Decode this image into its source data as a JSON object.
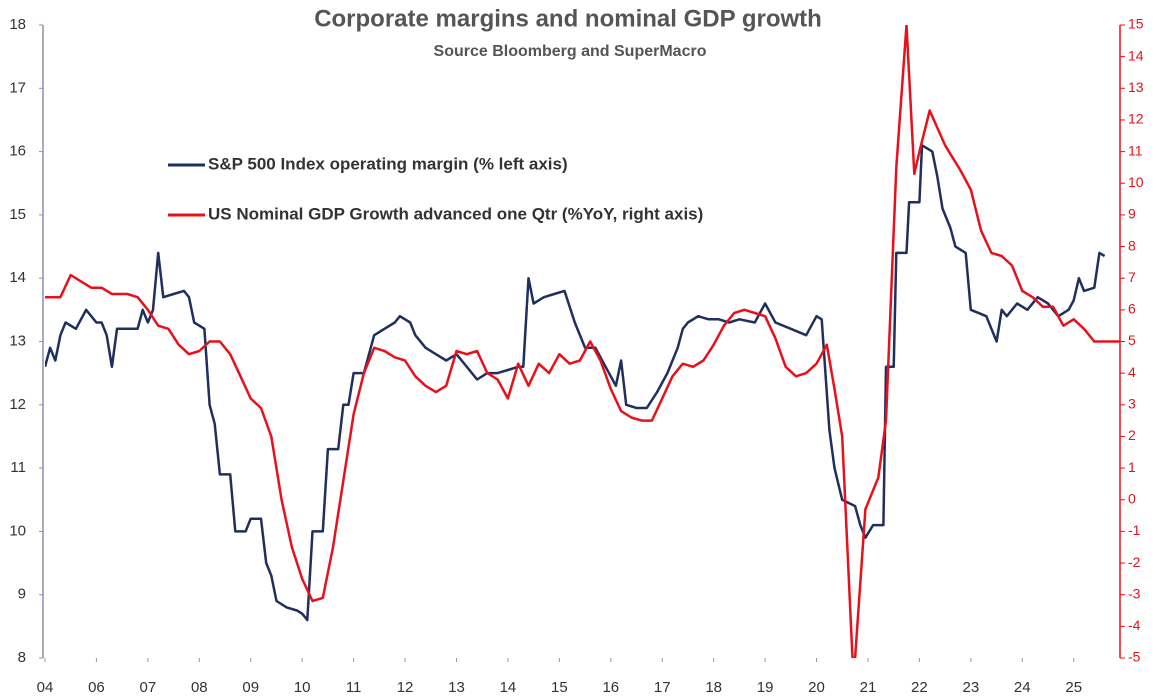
{
  "chart_data": {
    "type": "line",
    "title": "Corporate margins and nominal GDP growth",
    "subtitle": "Source Bloomberg and SuperMacro",
    "xlim": [
      0,
      20.9
    ],
    "xticks": [
      {
        "value": 0,
        "label": "04"
      },
      {
        "value": 1,
        "label": "06"
      },
      {
        "value": 2,
        "label": "07"
      },
      {
        "value": 3,
        "label": "08"
      },
      {
        "value": 4,
        "label": "09"
      },
      {
        "value": 5,
        "label": "10"
      },
      {
        "value": 6,
        "label": "11"
      },
      {
        "value": 7,
        "label": "12"
      },
      {
        "value": 8,
        "label": "13"
      },
      {
        "value": 9,
        "label": "14"
      },
      {
        "value": 10,
        "label": "15"
      },
      {
        "value": 11,
        "label": "16"
      },
      {
        "value": 12,
        "label": "17"
      },
      {
        "value": 13,
        "label": "18"
      },
      {
        "value": 14,
        "label": "19"
      },
      {
        "value": 15,
        "label": "20"
      },
      {
        "value": 16,
        "label": "21"
      },
      {
        "value": 17,
        "label": "22"
      },
      {
        "value": 18,
        "label": "23"
      },
      {
        "value": 19,
        "label": "24"
      },
      {
        "value": 20,
        "label": "25"
      }
    ],
    "ylim": [
      8,
      18
    ],
    "yticks": [
      8,
      9,
      10,
      11,
      12,
      13,
      14,
      15,
      16,
      17,
      18
    ],
    "y2lim": [
      -5,
      15
    ],
    "y2ticks": [
      -5,
      -4,
      -3,
      -2,
      -1,
      0,
      1,
      2,
      3,
      4,
      5,
      6,
      7,
      8,
      9,
      10,
      11,
      12,
      13,
      14,
      15
    ],
    "series": [
      {
        "name": "S&P 500 Index operating margin (% left axis)",
        "color": "#1f2f5e",
        "axis": "y",
        "x": [
          0,
          0.1,
          0.2,
          0.3,
          0.4,
          0.6,
          0.8,
          1.0,
          1.1,
          1.2,
          1.3,
          1.4,
          1.6,
          1.8,
          1.9,
          2.0,
          2.1,
          2.2,
          2.3,
          2.5,
          2.7,
          2.8,
          2.9,
          3.1,
          3.2,
          3.3,
          3.4,
          3.6,
          3.7,
          3.9,
          4.0,
          4.2,
          4.3,
          4.4,
          4.5,
          4.7,
          4.9,
          5.0,
          5.1,
          5.2,
          5.4,
          5.5,
          5.7,
          5.8,
          5.9,
          6.0,
          6.2,
          6.3,
          6.4,
          6.6,
          6.8,
          6.9,
          7.1,
          7.2,
          7.4,
          7.6,
          7.8,
          8.0,
          8.2,
          8.4,
          8.6,
          8.8,
          9.0,
          9.2,
          9.3,
          9.4,
          9.5,
          9.7,
          9.9,
          10.1,
          10.3,
          10.5,
          10.7,
          10.9,
          11.1,
          11.2,
          11.3,
          11.5,
          11.7,
          11.9,
          12.1,
          12.3,
          12.4,
          12.5,
          12.7,
          12.9,
          13.1,
          13.3,
          13.5,
          13.8,
          14.0,
          14.2,
          14.5,
          14.8,
          15.0,
          15.1,
          15.25,
          15.35,
          15.5,
          15.75,
          15.85,
          15.95,
          16.1,
          16.3,
          16.35,
          16.5,
          16.55,
          16.75,
          16.8,
          17.0,
          17.05,
          17.25,
          17.35,
          17.45,
          17.6,
          17.7,
          17.9,
          18.0,
          18.3,
          18.5,
          18.6,
          18.7,
          18.9,
          19.1,
          19.3,
          19.5,
          19.7,
          19.9,
          20.0,
          20.1,
          20.2,
          20.4,
          20.5,
          20.6
        ],
        "values": [
          12.6,
          12.9,
          12.7,
          13.1,
          13.3,
          13.2,
          13.5,
          13.3,
          13.3,
          13.1,
          12.6,
          13.2,
          13.2,
          13.2,
          13.5,
          13.3,
          13.5,
          14.4,
          13.7,
          13.75,
          13.8,
          13.7,
          13.3,
          13.2,
          12.0,
          11.7,
          10.9,
          10.9,
          10.0,
          10.0,
          10.2,
          10.2,
          9.5,
          9.3,
          8.9,
          8.8,
          8.75,
          8.7,
          8.6,
          10.0,
          10.0,
          11.3,
          11.3,
          12.0,
          12.0,
          12.5,
          12.5,
          12.8,
          13.1,
          13.2,
          13.3,
          13.4,
          13.3,
          13.1,
          12.9,
          12.8,
          12.7,
          12.8,
          12.6,
          12.4,
          12.5,
          12.5,
          12.55,
          12.6,
          12.6,
          14.0,
          13.6,
          13.7,
          13.75,
          13.8,
          13.3,
          12.9,
          12.9,
          12.6,
          12.3,
          12.7,
          12.0,
          11.95,
          11.95,
          12.2,
          12.5,
          12.9,
          13.2,
          13.3,
          13.4,
          13.35,
          13.35,
          13.3,
          13.35,
          13.3,
          13.6,
          13.3,
          13.2,
          13.1,
          13.4,
          13.35,
          11.6,
          11.0,
          10.5,
          10.4,
          10.1,
          9.9,
          10.1,
          10.1,
          12.6,
          12.6,
          14.4,
          14.4,
          15.2,
          15.2,
          16.1,
          16.0,
          15.6,
          15.1,
          14.8,
          14.5,
          14.4,
          13.5,
          13.4,
          13.0,
          13.5,
          13.4,
          13.6,
          13.5,
          13.7,
          13.6,
          13.4,
          13.5,
          13.65,
          14.0,
          13.8,
          13.85,
          14.4,
          14.35
        ]
      },
      {
        "name": "US Nominal GDP Growth advanced one Qtr (%YoY, right axis)",
        "color": "#e8101a",
        "axis": "y2",
        "x": [
          0,
          0.3,
          0.5,
          0.7,
          0.9,
          1.1,
          1.3,
          1.6,
          1.8,
          2.0,
          2.2,
          2.4,
          2.6,
          2.8,
          3.0,
          3.2,
          3.4,
          3.6,
          3.8,
          4.0,
          4.2,
          4.4,
          4.6,
          4.8,
          5.0,
          5.2,
          5.4,
          5.6,
          5.8,
          6.0,
          6.2,
          6.4,
          6.6,
          6.8,
          7.0,
          7.2,
          7.4,
          7.6,
          7.8,
          8.0,
          8.2,
          8.4,
          8.6,
          8.8,
          9.0,
          9.2,
          9.4,
          9.6,
          9.8,
          10.0,
          10.2,
          10.4,
          10.6,
          10.8,
          11.0,
          11.2,
          11.4,
          11.6,
          11.8,
          12.0,
          12.2,
          12.4,
          12.6,
          12.8,
          13.0,
          13.2,
          13.4,
          13.6,
          13.8,
          14.0,
          14.2,
          14.4,
          14.6,
          14.8,
          15.0,
          15.2,
          15.35,
          15.5,
          15.7,
          15.75,
          15.95,
          16.2,
          16.35,
          16.55,
          16.75,
          16.9,
          17.0,
          17.2,
          17.5,
          17.8,
          18.0,
          18.2,
          18.4,
          18.6,
          18.8,
          19.0,
          19.2,
          19.4,
          19.6,
          19.8,
          20.0,
          20.2,
          20.4,
          20.6,
          20.9
        ],
        "values": [
          6.4,
          6.4,
          7.1,
          6.9,
          6.7,
          6.7,
          6.5,
          6.5,
          6.4,
          6.0,
          5.5,
          5.4,
          4.9,
          4.6,
          4.7,
          5.0,
          5.0,
          4.6,
          3.9,
          3.2,
          2.9,
          2.0,
          0.0,
          -1.5,
          -2.5,
          -3.2,
          -3.1,
          -1.5,
          0.6,
          2.7,
          4.0,
          4.8,
          4.7,
          4.5,
          4.4,
          3.9,
          3.6,
          3.4,
          3.6,
          4.7,
          4.6,
          4.7,
          4.0,
          3.8,
          3.2,
          4.3,
          3.6,
          4.3,
          4.0,
          4.6,
          4.3,
          4.4,
          5.0,
          4.4,
          3.5,
          2.8,
          2.6,
          2.5,
          2.5,
          3.2,
          3.9,
          4.3,
          4.2,
          4.4,
          4.9,
          5.5,
          5.9,
          6.0,
          5.9,
          5.8,
          5.1,
          4.2,
          3.9,
          4.0,
          4.3,
          4.9,
          3.5,
          2.0,
          -5.0,
          -5.0,
          -0.3,
          0.7,
          2.5,
          10.5,
          15.0,
          10.3,
          11.0,
          12.3,
          11.2,
          10.4,
          9.8,
          8.5,
          7.8,
          7.7,
          7.4,
          6.6,
          6.4,
          6.1,
          6.1,
          5.5,
          5.7,
          5.4,
          5.0,
          5.0,
          5.0
        ]
      }
    ]
  }
}
